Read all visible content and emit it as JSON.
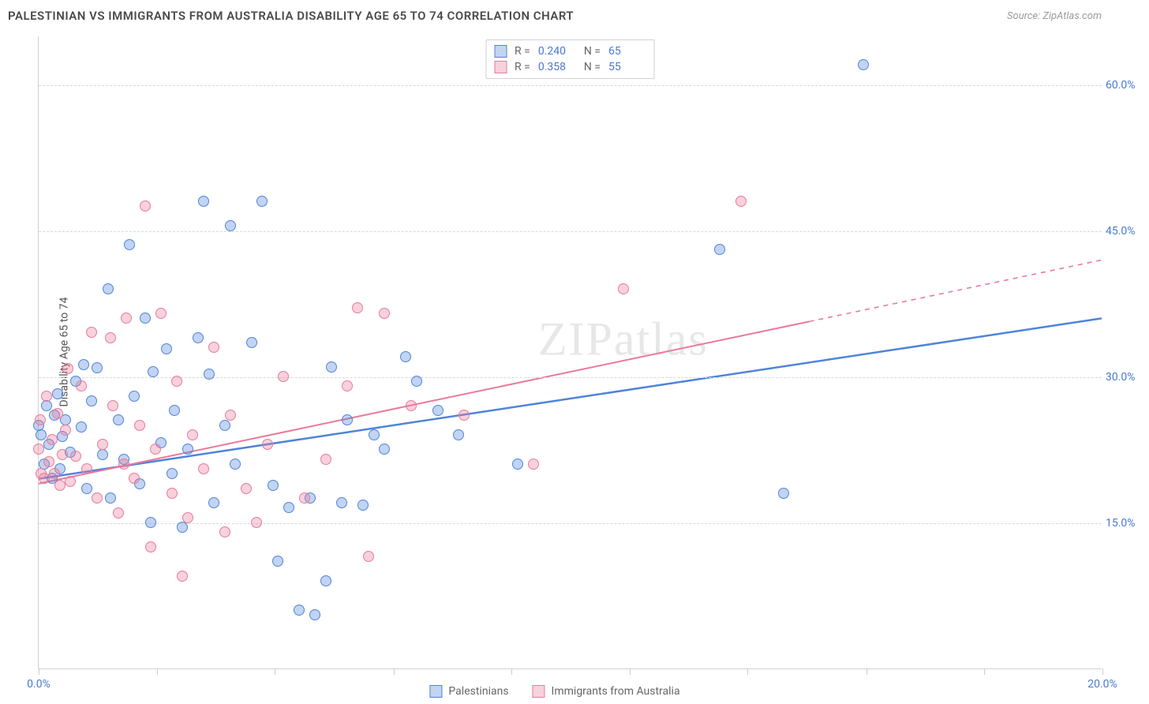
{
  "title": "PALESTINIAN VS IMMIGRANTS FROM AUSTRALIA DISABILITY AGE 65 TO 74 CORRELATION CHART",
  "source_prefix": "Source: ",
  "source_link": "ZipAtlas.com",
  "ylabel": "Disability Age 65 to 74",
  "watermark": "ZIPatlas",
  "chart": {
    "type": "scatter",
    "background_color": "#ffffff",
    "grid_color": "#d8d8d8",
    "axis_color": "#d0d0d0",
    "tick_label_color": "#4978d1",
    "text_color": "#555555",
    "xlim": [
      0,
      20
    ],
    "ylim": [
      0,
      65
    ],
    "xticks": [
      0,
      2.22,
      4.44,
      6.67,
      8.89,
      11.11,
      13.33,
      15.56,
      17.78,
      20
    ],
    "xtick_labels_shown": {
      "0": "0.0%",
      "20": "20.0%"
    },
    "yticks": [
      15,
      30,
      45,
      60
    ],
    "ytick_labels": [
      "15.0%",
      "30.0%",
      "45.0%",
      "60.0%"
    ],
    "point_radius": 7,
    "point_border_width": 1.5,
    "point_fill_opacity": 0.35,
    "series": [
      {
        "key": "palestinians",
        "label": "Palestinians",
        "color": "#4f84d9",
        "fill": "rgba(79,132,217,0.35)",
        "R": "0.240",
        "N": "65",
        "trend": {
          "x1": 0,
          "y1": 19.5,
          "x2": 20,
          "y2": 36.0,
          "solid_until_x": 20,
          "width": 2.5
        },
        "points": [
          [
            0.05,
            24
          ],
          [
            0.1,
            21
          ],
          [
            0.15,
            27
          ],
          [
            0.2,
            23
          ],
          [
            0.25,
            19.5
          ],
          [
            0.3,
            26
          ],
          [
            0.35,
            28.2
          ],
          [
            0.4,
            20.5
          ],
          [
            0.45,
            23.8
          ],
          [
            0.5,
            25.5
          ],
          [
            0.6,
            22.2
          ],
          [
            0.7,
            29.5
          ],
          [
            0.8,
            24.8
          ],
          [
            0.85,
            31.2
          ],
          [
            0.9,
            18.5
          ],
          [
            1.0,
            27.5
          ],
          [
            1.1,
            30.9
          ],
          [
            1.2,
            22.0
          ],
          [
            1.3,
            39.0
          ],
          [
            1.35,
            17.5
          ],
          [
            1.5,
            25.5
          ],
          [
            1.6,
            21.5
          ],
          [
            1.7,
            43.5
          ],
          [
            1.8,
            28.0
          ],
          [
            1.9,
            19.0
          ],
          [
            2.0,
            36.0
          ],
          [
            2.1,
            15.0
          ],
          [
            2.15,
            30.5
          ],
          [
            2.3,
            23.2
          ],
          [
            2.4,
            32.8
          ],
          [
            2.5,
            20.0
          ],
          [
            2.55,
            26.5
          ],
          [
            2.7,
            14.5
          ],
          [
            2.8,
            22.5
          ],
          [
            3.0,
            34.0
          ],
          [
            3.1,
            48.0
          ],
          [
            3.2,
            30.2
          ],
          [
            3.3,
            17.0
          ],
          [
            3.5,
            25.0
          ],
          [
            3.6,
            45.5
          ],
          [
            3.7,
            21.0
          ],
          [
            4.0,
            33.5
          ],
          [
            4.2,
            48.0
          ],
          [
            4.4,
            18.8
          ],
          [
            4.5,
            11.0
          ],
          [
            4.7,
            16.5
          ],
          [
            4.9,
            6.0
          ],
          [
            5.1,
            17.5
          ],
          [
            5.2,
            5.5
          ],
          [
            5.4,
            9.0
          ],
          [
            5.5,
            31.0
          ],
          [
            5.7,
            17.0
          ],
          [
            5.8,
            25.5
          ],
          [
            6.1,
            16.8
          ],
          [
            6.3,
            24.0
          ],
          [
            6.5,
            22.5
          ],
          [
            6.9,
            32.0
          ],
          [
            7.1,
            29.5
          ],
          [
            7.5,
            26.5
          ],
          [
            7.9,
            24.0
          ],
          [
            9.0,
            21.0
          ],
          [
            12.8,
            43.0
          ],
          [
            14.0,
            18.0
          ],
          [
            15.5,
            62.0
          ],
          [
            0.0,
            25.0
          ]
        ]
      },
      {
        "key": "australia",
        "label": "Immigrants from Australia",
        "color": "#e97a9a",
        "fill": "rgba(233,122,154,0.35)",
        "R": "0.358",
        "N": "55",
        "trend": {
          "x1": 0,
          "y1": 19.0,
          "x2": 20,
          "y2": 42.0,
          "solid_until_x": 14.5,
          "width": 2
        },
        "points": [
          [
            0.03,
            25.5
          ],
          [
            0.1,
            19.5
          ],
          [
            0.15,
            28.0
          ],
          [
            0.2,
            21.2
          ],
          [
            0.25,
            23.5
          ],
          [
            0.3,
            20.0
          ],
          [
            0.35,
            26.2
          ],
          [
            0.4,
            18.8
          ],
          [
            0.45,
            22.0
          ],
          [
            0.5,
            24.5
          ],
          [
            0.55,
            30.8
          ],
          [
            0.6,
            19.2
          ],
          [
            0.7,
            21.8
          ],
          [
            0.8,
            29.0
          ],
          [
            0.9,
            20.5
          ],
          [
            1.0,
            34.5
          ],
          [
            1.1,
            17.5
          ],
          [
            1.2,
            23.0
          ],
          [
            1.35,
            34.0
          ],
          [
            1.4,
            27.0
          ],
          [
            1.5,
            16.0
          ],
          [
            1.6,
            21.0
          ],
          [
            1.65,
            36.0
          ],
          [
            1.8,
            19.5
          ],
          [
            1.9,
            25.0
          ],
          [
            2.0,
            47.5
          ],
          [
            2.1,
            12.5
          ],
          [
            2.2,
            22.5
          ],
          [
            2.3,
            36.5
          ],
          [
            2.5,
            18.0
          ],
          [
            2.6,
            29.5
          ],
          [
            2.7,
            9.5
          ],
          [
            2.8,
            15.5
          ],
          [
            2.9,
            24.0
          ],
          [
            3.1,
            20.5
          ],
          [
            3.3,
            33.0
          ],
          [
            3.5,
            14.0
          ],
          [
            3.6,
            26.0
          ],
          [
            3.9,
            18.5
          ],
          [
            4.1,
            15.0
          ],
          [
            4.3,
            23.0
          ],
          [
            4.6,
            30.0
          ],
          [
            5.0,
            17.5
          ],
          [
            5.4,
            21.5
          ],
          [
            5.8,
            29.0
          ],
          [
            6.0,
            37.0
          ],
          [
            6.2,
            11.5
          ],
          [
            6.5,
            36.5
          ],
          [
            7.0,
            27.0
          ],
          [
            8.0,
            26.0
          ],
          [
            9.3,
            21.0
          ],
          [
            11.0,
            39.0
          ],
          [
            13.2,
            48.0
          ],
          [
            0.0,
            22.5
          ],
          [
            0.05,
            20.0
          ]
        ]
      }
    ]
  },
  "legend_top": {
    "R_label": "R =",
    "N_label": "N ="
  },
  "legend_bottom": [
    {
      "series": "palestinians"
    },
    {
      "series": "australia"
    }
  ]
}
